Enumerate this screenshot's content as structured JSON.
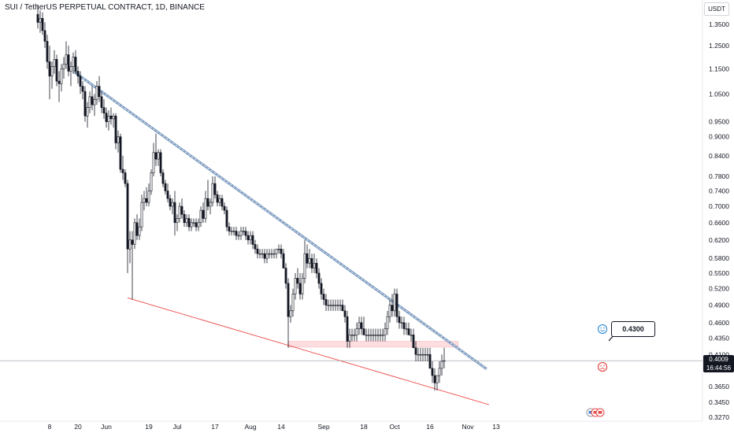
{
  "header": {
    "title": "SUI / TetherUS PERPETUAL CONTRACT, 1D, BINANCE",
    "currency": "USDT"
  },
  "last_price": {
    "price": "0.4009",
    "countdown": "16:44:56"
  },
  "callout": {
    "label": "0.4300"
  },
  "colors": {
    "up": "#ffffff",
    "down": "#131722",
    "upper_trendline": "#7e9cc0",
    "lower_trendline": "#f05a5a",
    "zone": "#fcdde0",
    "price_line": "#9598a1",
    "smile_icon": "#3b8fd6",
    "frown_icon": "#e64a4a"
  },
  "icons": {
    "bullish": "smile-icon",
    "bearish": "frown-icon",
    "events": "flag-icon"
  },
  "chart_data": {
    "type": "candlestick",
    "title": "SUI / TetherUS PERPETUAL CONTRACT, 1D, BINANCE",
    "y_scale": "log",
    "ylim": [
      0.32,
      1.45
    ],
    "y_ticks": [
      "1.3500",
      "1.2500",
      "1.1500",
      "1.0500",
      "0.9500",
      "0.9000",
      "0.8400",
      "0.7800",
      "0.7400",
      "0.7000",
      "0.6600",
      "0.6200",
      "0.5800",
      "0.5500",
      "0.5200",
      "0.4900",
      "0.4600",
      "0.4350",
      "0.4100",
      "0.3650",
      "0.3450",
      "0.3270"
    ],
    "x_ticks": [
      "8",
      "20",
      "Jun",
      "19",
      "Jul",
      "17",
      "Aug",
      "14",
      "Sep",
      "18",
      "Oct",
      "16",
      "Nov",
      "13"
    ],
    "x_tick_dates": [
      "2023-05-08",
      "2023-05-20",
      "2023-06-01",
      "2023-06-19",
      "2023-07-01",
      "2023-07-17",
      "2023-08-01",
      "2023-08-14",
      "2023-09-01",
      "2023-09-18",
      "2023-10-01",
      "2023-10-16",
      "2023-11-01",
      "2023-11-13"
    ],
    "ohlc": [
      [
        "2023-05-03",
        1.4,
        1.45,
        1.33,
        1.36
      ],
      [
        "2023-05-04",
        1.36,
        1.42,
        1.31,
        1.38
      ],
      [
        "2023-05-05",
        1.38,
        1.41,
        1.3,
        1.32
      ],
      [
        "2023-05-06",
        1.32,
        1.36,
        1.24,
        1.27
      ],
      [
        "2023-05-07",
        1.27,
        1.3,
        1.15,
        1.18
      ],
      [
        "2023-05-08",
        1.18,
        1.25,
        1.03,
        1.12
      ],
      [
        "2023-05-09",
        1.12,
        1.18,
        1.07,
        1.16
      ],
      [
        "2023-05-10",
        1.16,
        1.23,
        1.13,
        1.19
      ],
      [
        "2023-05-11",
        1.19,
        1.21,
        1.08,
        1.1
      ],
      [
        "2023-05-12",
        1.1,
        1.14,
        1.02,
        1.09
      ],
      [
        "2023-05-13",
        1.09,
        1.17,
        1.06,
        1.15
      ],
      [
        "2023-05-14",
        1.15,
        1.2,
        1.11,
        1.17
      ],
      [
        "2023-05-15",
        1.17,
        1.27,
        1.15,
        1.21
      ],
      [
        "2023-05-16",
        1.21,
        1.25,
        1.12,
        1.14
      ],
      [
        "2023-05-17",
        1.14,
        1.18,
        1.08,
        1.16
      ],
      [
        "2023-05-18",
        1.16,
        1.22,
        1.13,
        1.2
      ],
      [
        "2023-05-19",
        1.2,
        1.23,
        1.13,
        1.14
      ],
      [
        "2023-05-20",
        1.14,
        1.16,
        1.09,
        1.12
      ],
      [
        "2023-05-21",
        1.12,
        1.14,
        1.05,
        1.08
      ],
      [
        "2023-05-22",
        1.08,
        1.1,
        1.03,
        1.06
      ],
      [
        "2023-05-23",
        1.06,
        1.08,
        0.95,
        0.97
      ],
      [
        "2023-05-24",
        0.97,
        1.02,
        0.93,
        1.0
      ],
      [
        "2023-05-25",
        1.0,
        1.06,
        0.98,
        1.04
      ],
      [
        "2023-05-26",
        1.04,
        1.08,
        0.99,
        1.01
      ],
      [
        "2023-05-27",
        1.01,
        1.05,
        0.97,
        1.03
      ],
      [
        "2023-05-28",
        1.03,
        1.1,
        1.01,
        1.08
      ],
      [
        "2023-05-29",
        1.08,
        1.12,
        1.02,
        1.04
      ],
      [
        "2023-05-30",
        1.04,
        1.06,
        0.98,
        1.0
      ],
      [
        "2023-05-31",
        1.0,
        1.03,
        0.96,
        0.98
      ],
      [
        "2023-06-01",
        0.98,
        1.0,
        0.93,
        0.95
      ],
      [
        "2023-06-02",
        0.95,
        0.99,
        0.92,
        0.97
      ],
      [
        "2023-06-03",
        0.97,
        1.0,
        0.94,
        0.96
      ],
      [
        "2023-06-04",
        0.96,
        0.98,
        0.93,
        0.97
      ],
      [
        "2023-06-05",
        0.97,
        0.98,
        0.86,
        0.88
      ],
      [
        "2023-06-06",
        0.88,
        0.92,
        0.85,
        0.9
      ],
      [
        "2023-06-07",
        0.9,
        0.91,
        0.79,
        0.8
      ],
      [
        "2023-06-08",
        0.8,
        0.84,
        0.77,
        0.79
      ],
      [
        "2023-06-09",
        0.79,
        0.8,
        0.75,
        0.76
      ],
      [
        "2023-06-10",
        0.76,
        0.77,
        0.55,
        0.6
      ],
      [
        "2023-06-11",
        0.6,
        0.64,
        0.57,
        0.62
      ],
      [
        "2023-06-12",
        0.62,
        0.64,
        0.5,
        0.61
      ],
      [
        "2023-06-13",
        0.61,
        0.67,
        0.6,
        0.66
      ],
      [
        "2023-06-14",
        0.66,
        0.68,
        0.62,
        0.63
      ],
      [
        "2023-06-15",
        0.63,
        0.67,
        0.62,
        0.65
      ],
      [
        "2023-06-16",
        0.65,
        0.73,
        0.64,
        0.71
      ],
      [
        "2023-06-17",
        0.71,
        0.74,
        0.69,
        0.72
      ],
      [
        "2023-06-18",
        0.72,
        0.75,
        0.7,
        0.71
      ],
      [
        "2023-06-19",
        0.71,
        0.76,
        0.7,
        0.74
      ],
      [
        "2023-06-20",
        0.74,
        0.8,
        0.73,
        0.79
      ],
      [
        "2023-06-21",
        0.79,
        0.88,
        0.78,
        0.85
      ],
      [
        "2023-06-22",
        0.85,
        0.91,
        0.81,
        0.83
      ],
      [
        "2023-06-23",
        0.83,
        0.86,
        0.81,
        0.85
      ],
      [
        "2023-06-24",
        0.85,
        0.86,
        0.78,
        0.79
      ],
      [
        "2023-06-25",
        0.79,
        0.8,
        0.75,
        0.76
      ],
      [
        "2023-06-26",
        0.76,
        0.77,
        0.73,
        0.74
      ],
      [
        "2023-06-27",
        0.74,
        0.76,
        0.71,
        0.72
      ],
      [
        "2023-06-28",
        0.72,
        0.73,
        0.69,
        0.7
      ],
      [
        "2023-06-29",
        0.7,
        0.72,
        0.68,
        0.71
      ],
      [
        "2023-06-30",
        0.71,
        0.74,
        0.63,
        0.66
      ],
      [
        "2023-07-01",
        0.66,
        0.68,
        0.64,
        0.67
      ],
      [
        "2023-07-02",
        0.67,
        0.71,
        0.66,
        0.7
      ],
      [
        "2023-07-03",
        0.7,
        0.72,
        0.67,
        0.68
      ],
      [
        "2023-07-04",
        0.68,
        0.69,
        0.65,
        0.66
      ],
      [
        "2023-07-05",
        0.66,
        0.68,
        0.65,
        0.67
      ],
      [
        "2023-07-06",
        0.67,
        0.68,
        0.64,
        0.65
      ],
      [
        "2023-07-07",
        0.65,
        0.67,
        0.64,
        0.66
      ],
      [
        "2023-07-08",
        0.66,
        0.67,
        0.65,
        0.66
      ],
      [
        "2023-07-09",
        0.66,
        0.67,
        0.64,
        0.65
      ],
      [
        "2023-07-10",
        0.65,
        0.67,
        0.64,
        0.66
      ],
      [
        "2023-07-11",
        0.66,
        0.7,
        0.65,
        0.69
      ],
      [
        "2023-07-12",
        0.69,
        0.71,
        0.66,
        0.67
      ],
      [
        "2023-07-13",
        0.67,
        0.74,
        0.66,
        0.72
      ],
      [
        "2023-07-14",
        0.72,
        0.77,
        0.69,
        0.7
      ],
      [
        "2023-07-15",
        0.7,
        0.72,
        0.68,
        0.71
      ],
      [
        "2023-07-16",
        0.71,
        0.78,
        0.7,
        0.76
      ],
      [
        "2023-07-17",
        0.76,
        0.78,
        0.72,
        0.73
      ],
      [
        "2023-07-18",
        0.73,
        0.74,
        0.7,
        0.71
      ],
      [
        "2023-07-19",
        0.71,
        0.73,
        0.7,
        0.72
      ],
      [
        "2023-07-20",
        0.72,
        0.73,
        0.69,
        0.7
      ],
      [
        "2023-07-21",
        0.7,
        0.71,
        0.68,
        0.69
      ],
      [
        "2023-07-22",
        0.69,
        0.7,
        0.64,
        0.65
      ],
      [
        "2023-07-23",
        0.65,
        0.66,
        0.63,
        0.64
      ],
      [
        "2023-07-24",
        0.64,
        0.65,
        0.63,
        0.64
      ],
      [
        "2023-07-25",
        0.64,
        0.65,
        0.63,
        0.64
      ],
      [
        "2023-07-26",
        0.64,
        0.65,
        0.62,
        0.63
      ],
      [
        "2023-07-27",
        0.63,
        0.64,
        0.62,
        0.63
      ],
      [
        "2023-07-28",
        0.63,
        0.65,
        0.62,
        0.64
      ],
      [
        "2023-07-29",
        0.64,
        0.65,
        0.63,
        0.64
      ],
      [
        "2023-07-30",
        0.64,
        0.65,
        0.62,
        0.63
      ],
      [
        "2023-07-31",
        0.63,
        0.64,
        0.61,
        0.62
      ],
      [
        "2023-08-01",
        0.62,
        0.64,
        0.61,
        0.63
      ],
      [
        "2023-08-02",
        0.63,
        0.64,
        0.6,
        0.61
      ],
      [
        "2023-08-03",
        0.61,
        0.62,
        0.59,
        0.6
      ],
      [
        "2023-08-04",
        0.6,
        0.61,
        0.58,
        0.59
      ],
      [
        "2023-08-05",
        0.59,
        0.6,
        0.58,
        0.59
      ],
      [
        "2023-08-06",
        0.59,
        0.6,
        0.58,
        0.59
      ],
      [
        "2023-08-07",
        0.59,
        0.6,
        0.57,
        0.58
      ],
      [
        "2023-08-08",
        0.58,
        0.6,
        0.57,
        0.59
      ],
      [
        "2023-08-09",
        0.59,
        0.6,
        0.58,
        0.59
      ],
      [
        "2023-08-10",
        0.59,
        0.6,
        0.58,
        0.59
      ],
      [
        "2023-08-11",
        0.59,
        0.6,
        0.58,
        0.59
      ],
      [
        "2023-08-12",
        0.59,
        0.6,
        0.58,
        0.6
      ],
      [
        "2023-08-13",
        0.6,
        0.61,
        0.59,
        0.6
      ],
      [
        "2023-08-14",
        0.6,
        0.61,
        0.58,
        0.59
      ],
      [
        "2023-08-15",
        0.59,
        0.6,
        0.56,
        0.56
      ],
      [
        "2023-08-16",
        0.56,
        0.57,
        0.52,
        0.53
      ],
      [
        "2023-08-17",
        0.53,
        0.54,
        0.42,
        0.47
      ],
      [
        "2023-08-18",
        0.47,
        0.49,
        0.46,
        0.48
      ],
      [
        "2023-08-19",
        0.48,
        0.52,
        0.47,
        0.51
      ],
      [
        "2023-08-20",
        0.51,
        0.55,
        0.5,
        0.54
      ],
      [
        "2023-08-21",
        0.54,
        0.56,
        0.52,
        0.53
      ],
      [
        "2023-08-22",
        0.53,
        0.55,
        0.5,
        0.51
      ],
      [
        "2023-08-23",
        0.51,
        0.55,
        0.5,
        0.54
      ],
      [
        "2023-08-24",
        0.54,
        0.62,
        0.53,
        0.59
      ],
      [
        "2023-08-25",
        0.59,
        0.61,
        0.56,
        0.57
      ],
      [
        "2023-08-26",
        0.57,
        0.6,
        0.56,
        0.58
      ],
      [
        "2023-08-27",
        0.58,
        0.59,
        0.55,
        0.56
      ],
      [
        "2023-08-28",
        0.56,
        0.59,
        0.55,
        0.57
      ],
      [
        "2023-08-29",
        0.57,
        0.58,
        0.54,
        0.55
      ],
      [
        "2023-08-30",
        0.55,
        0.56,
        0.52,
        0.53
      ],
      [
        "2023-08-31",
        0.53,
        0.54,
        0.5,
        0.51
      ],
      [
        "2023-09-01",
        0.51,
        0.52,
        0.49,
        0.5
      ],
      [
        "2023-09-02",
        0.5,
        0.51,
        0.48,
        0.49
      ],
      [
        "2023-09-03",
        0.49,
        0.5,
        0.48,
        0.49
      ],
      [
        "2023-09-04",
        0.49,
        0.5,
        0.48,
        0.49
      ],
      [
        "2023-09-05",
        0.49,
        0.5,
        0.48,
        0.49
      ],
      [
        "2023-09-06",
        0.49,
        0.5,
        0.48,
        0.49
      ],
      [
        "2023-09-07",
        0.49,
        0.5,
        0.48,
        0.49
      ],
      [
        "2023-09-08",
        0.49,
        0.5,
        0.48,
        0.49
      ],
      [
        "2023-09-09",
        0.49,
        0.5,
        0.48,
        0.48
      ],
      [
        "2023-09-10",
        0.48,
        0.49,
        0.46,
        0.47
      ],
      [
        "2023-09-11",
        0.47,
        0.48,
        0.42,
        0.43
      ],
      [
        "2023-09-12",
        0.43,
        0.45,
        0.42,
        0.44
      ],
      [
        "2023-09-13",
        0.44,
        0.45,
        0.43,
        0.44
      ],
      [
        "2023-09-14",
        0.44,
        0.45,
        0.43,
        0.44
      ],
      [
        "2023-09-15",
        0.44,
        0.46,
        0.43,
        0.45
      ],
      [
        "2023-09-16",
        0.45,
        0.47,
        0.44,
        0.46
      ],
      [
        "2023-09-17",
        0.46,
        0.47,
        0.44,
        0.45
      ],
      [
        "2023-09-18",
        0.45,
        0.47,
        0.44,
        0.44
      ],
      [
        "2023-09-19",
        0.44,
        0.45,
        0.43,
        0.44
      ],
      [
        "2023-09-20",
        0.44,
        0.45,
        0.43,
        0.44
      ],
      [
        "2023-09-21",
        0.44,
        0.45,
        0.43,
        0.44
      ],
      [
        "2023-09-22",
        0.44,
        0.45,
        0.43,
        0.44
      ],
      [
        "2023-09-23",
        0.44,
        0.45,
        0.43,
        0.44
      ],
      [
        "2023-09-24",
        0.44,
        0.45,
        0.43,
        0.44
      ],
      [
        "2023-09-25",
        0.44,
        0.45,
        0.43,
        0.44
      ],
      [
        "2023-09-26",
        0.44,
        0.45,
        0.43,
        0.44
      ],
      [
        "2023-09-27",
        0.44,
        0.46,
        0.43,
        0.45
      ],
      [
        "2023-09-28",
        0.45,
        0.48,
        0.44,
        0.47
      ],
      [
        "2023-09-29",
        0.47,
        0.5,
        0.46,
        0.49
      ],
      [
        "2023-09-30",
        0.49,
        0.51,
        0.47,
        0.48
      ],
      [
        "2023-10-01",
        0.48,
        0.52,
        0.47,
        0.51
      ],
      [
        "2023-10-02",
        0.51,
        0.52,
        0.46,
        0.47
      ],
      [
        "2023-10-03",
        0.47,
        0.48,
        0.45,
        0.46
      ],
      [
        "2023-10-04",
        0.46,
        0.47,
        0.45,
        0.46
      ],
      [
        "2023-10-05",
        0.46,
        0.47,
        0.44,
        0.45
      ],
      [
        "2023-10-06",
        0.45,
        0.46,
        0.44,
        0.45
      ],
      [
        "2023-10-07",
        0.45,
        0.46,
        0.44,
        0.44
      ],
      [
        "2023-10-08",
        0.44,
        0.45,
        0.43,
        0.44
      ],
      [
        "2023-10-09",
        0.44,
        0.45,
        0.42,
        0.42
      ],
      [
        "2023-10-10",
        0.42,
        0.43,
        0.4,
        0.41
      ],
      [
        "2023-10-11",
        0.41,
        0.42,
        0.4,
        0.41
      ],
      [
        "2023-10-12",
        0.41,
        0.42,
        0.4,
        0.41
      ],
      [
        "2023-10-13",
        0.41,
        0.42,
        0.4,
        0.41
      ],
      [
        "2023-10-14",
        0.41,
        0.42,
        0.4,
        0.41
      ],
      [
        "2023-10-15",
        0.41,
        0.42,
        0.4,
        0.41
      ],
      [
        "2023-10-16",
        0.41,
        0.42,
        0.39,
        0.39
      ],
      [
        "2023-10-17",
        0.39,
        0.4,
        0.37,
        0.38
      ],
      [
        "2023-10-18",
        0.38,
        0.39,
        0.36,
        0.37
      ],
      [
        "2023-10-19",
        0.37,
        0.38,
        0.36,
        0.38
      ],
      [
        "2023-10-20",
        0.38,
        0.4,
        0.37,
        0.39
      ],
      [
        "2023-10-21",
        0.39,
        0.41,
        0.38,
        0.4
      ],
      [
        "2023-10-22",
        0.4,
        0.42,
        0.39,
        0.4009
      ]
    ],
    "trendlines": [
      {
        "kind": "resistance",
        "start": [
          "2023-05-18",
          1.14
        ],
        "end": [
          "2023-11-09",
          0.389
        ]
      },
      {
        "kind": "support",
        "start": [
          "2023-06-10",
          0.503
        ],
        "end": [
          "2023-11-10",
          0.342
        ]
      }
    ],
    "zone": {
      "start": "2023-08-17",
      "end": "2023-10-28",
      "top": 0.43,
      "bottom": 0.421
    },
    "last_price": 0.4009,
    "annotation": {
      "text": "0.4300",
      "value": 0.43
    }
  }
}
